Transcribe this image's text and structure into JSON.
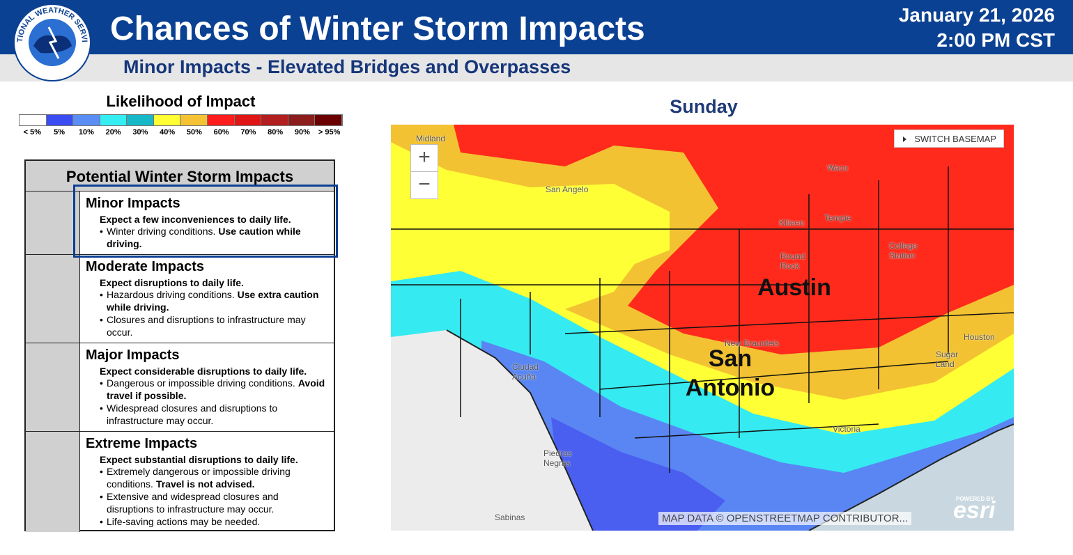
{
  "header": {
    "logo_text": "NATIONAL WEATHER SERVICE",
    "title": "Chances of Winter Storm Impacts",
    "subtitle": "Minor Impacts - Elevated Bridges and Overpasses",
    "date": "January 21, 2026",
    "time": "2:00 PM CST"
  },
  "legend": {
    "title": "Likelihood of Impact",
    "items": [
      {
        "label": "< 5%",
        "color": "#ffffff"
      },
      {
        "label": "5%",
        "color": "#3a4df2"
      },
      {
        "label": "10%",
        "color": "#5a8ef5"
      },
      {
        "label": "20%",
        "color": "#35eef2"
      },
      {
        "label": "30%",
        "color": "#17b8c8"
      },
      {
        "label": "40%",
        "color": "#ffff33"
      },
      {
        "label": "50%",
        "color": "#f4c232"
      },
      {
        "label": "60%",
        "color": "#ff1c1c"
      },
      {
        "label": "70%",
        "color": "#e01616"
      },
      {
        "label": "80%",
        "color": "#b31f1f"
      },
      {
        "label": "90%",
        "color": "#8c1d1d"
      },
      {
        "label": "> 95%",
        "color": "#6a0000"
      }
    ]
  },
  "impacts": {
    "title": "Potential Winter Storm Impacts",
    "levels": [
      {
        "name": "Minor Impacts",
        "summary": "Expect a few inconveniences to daily life.",
        "bullets": [
          [
            {
              "text": "Winter driving conditions."
            },
            {
              "text": "Use caution while driving.",
              "bold": true
            }
          ]
        ]
      },
      {
        "name": "Moderate Impacts",
        "summary": "Expect disruptions to daily life.",
        "bullets": [
          [
            {
              "text": "Hazardous driving conditions."
            },
            {
              "text": "Use extra caution while driving.",
              "bold": true
            }
          ],
          [
            {
              "text": "Closures and disruptions to infrastructure may occur."
            }
          ]
        ]
      },
      {
        "name": "Major Impacts",
        "summary": "Expect considerable disruptions to daily life.",
        "bullets": [
          [
            {
              "text": "Dangerous or impossible driving conditions."
            },
            {
              "text": "Avoid travel if possible.",
              "bold": true
            }
          ],
          [
            {
              "text": "Widespread closures and disruptions to infrastructure may occur."
            }
          ]
        ]
      },
      {
        "name": "Extreme Impacts",
        "summary": "Expect substantial disruptions to daily life.",
        "bullets": [
          [
            {
              "text": "Extremely dangerous or impossible driving conditions."
            },
            {
              "text": "Travel is not advised.",
              "bold": true
            }
          ],
          [
            {
              "text": "Extensive and widespread closures and disruptions to infrastructure may occur."
            }
          ],
          [
            {
              "text": "Life-saving actions may be needed."
            }
          ]
        ]
      }
    ]
  },
  "map": {
    "title": "Sunday",
    "zoom_in": "+",
    "zoom_out": "−",
    "basemap_button": "SWITCH BASEMAP",
    "major_cities": [
      "Austin",
      "San Antonio"
    ],
    "places": [
      "Midland",
      "San Angelo",
      "Waco",
      "Killeen",
      "Temple",
      "Round Rock",
      "College Station",
      "New Braunfels",
      "Houston",
      "Sugar Land",
      "Victoria",
      "Ciudad Acuña",
      "Piedras Negras",
      "Sabinas"
    ],
    "attribution": "MAP DATA © OPENSTREETMAP CONTRIBUTOR...",
    "esri_powered": "POWERED BY",
    "esri_logo": "esri"
  }
}
